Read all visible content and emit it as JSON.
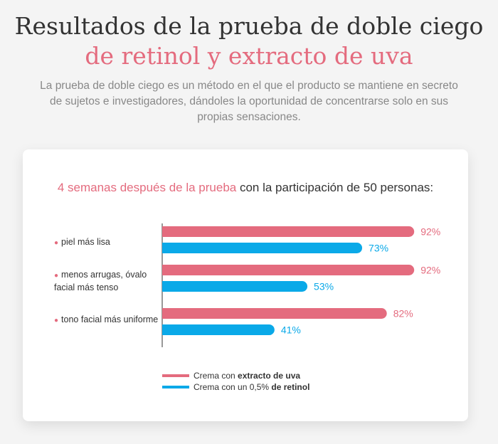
{
  "header": {
    "title_part1": "Resultados de la prueba de doble ciego ",
    "title_highlight": "de retinol y extracto de uva",
    "subtitle": "La prueba de doble ciego es un método en el que el producto se mantiene en secreto de sujetos e investigadores, dándoles la oportunidad de concentrarse solo en sus propias sensaciones."
  },
  "colors": {
    "accent": "#e46b7e",
    "series_uva": "#e46b7e",
    "series_retinol": "#0aa9e8",
    "text": "#333333"
  },
  "chart_data": {
    "type": "bar",
    "orientation": "horizontal",
    "title_highlight": "4 semanas después de la prueba",
    "title_rest": " con la participación de 50 personas:",
    "categories": [
      "piel más lisa",
      "menos arrugas, óvalo facial más tenso",
      "tono facial más uniforme"
    ],
    "series": [
      {
        "name": "Crema con extracto de uva",
        "values": [
          92,
          92,
          82
        ]
      },
      {
        "name": "Crema con un 0,5% de retinol",
        "values": [
          73,
          53,
          41
        ]
      }
    ],
    "value_suffix": "%",
    "xlim": [
      0,
      100
    ],
    "grid": false,
    "legend_position": "bottom",
    "legend": [
      {
        "prefix": "Crema con ",
        "bold": "extracto de uva"
      },
      {
        "prefix": "Crema con un 0,5% ",
        "bold": "de retinol"
      }
    ]
  }
}
